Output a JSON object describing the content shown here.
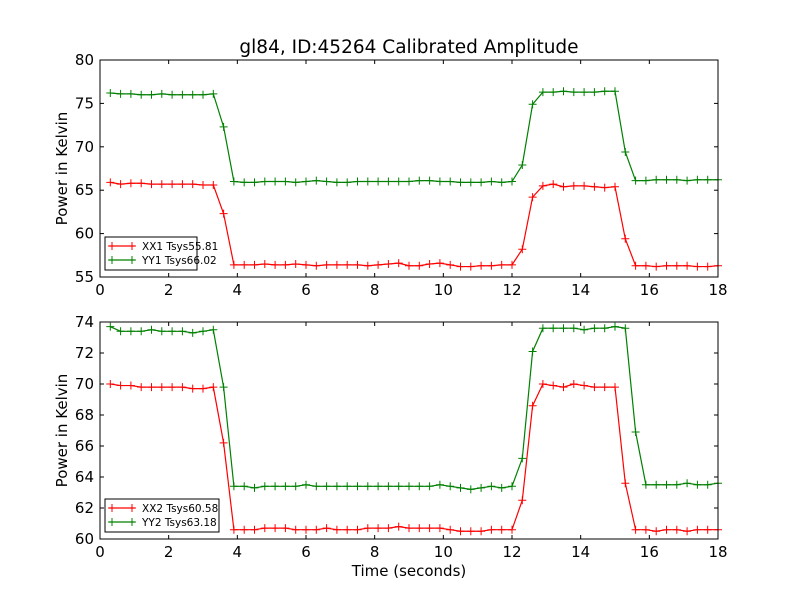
{
  "chart_data": [
    {
      "type": "line",
      "title": "gl84, ID:45264 Calibrated Amplitude",
      "xlabel": "",
      "ylabel": "Power in Kelvin",
      "xlim": [
        0,
        18
      ],
      "ylim": [
        55,
        80
      ],
      "xticks": [
        0,
        2,
        4,
        6,
        8,
        10,
        12,
        14,
        16,
        18
      ],
      "yticks": [
        55,
        60,
        65,
        70,
        75,
        80
      ],
      "grid": false,
      "legend_position": "lower-left",
      "x": [
        0.3,
        0.6,
        0.9,
        1.2,
        1.5,
        1.8,
        2.1,
        2.4,
        2.7,
        3.0,
        3.3,
        3.6,
        3.9,
        4.2,
        4.5,
        4.8,
        5.1,
        5.4,
        5.7,
        6.0,
        6.3,
        6.6,
        6.9,
        7.2,
        7.5,
        7.8,
        8.1,
        8.4,
        8.7,
        9.0,
        9.3,
        9.6,
        9.9,
        10.2,
        10.5,
        10.8,
        11.1,
        11.4,
        11.7,
        12.0,
        12.3,
        12.6,
        12.9,
        13.2,
        13.5,
        13.8,
        14.1,
        14.4,
        14.7,
        15.0,
        15.3,
        15.6,
        15.9,
        16.2,
        16.5,
        16.8,
        17.1,
        17.4,
        17.7,
        18.0
      ],
      "series": [
        {
          "name": "XX1 Tsys55.81",
          "color": "#ff0000",
          "values": [
            65.9,
            65.7,
            65.8,
            65.8,
            65.7,
            65.7,
            65.7,
            65.7,
            65.7,
            65.6,
            65.6,
            62.3,
            56.4,
            56.4,
            56.4,
            56.5,
            56.4,
            56.4,
            56.5,
            56.4,
            56.3,
            56.4,
            56.4,
            56.4,
            56.4,
            56.3,
            56.4,
            56.5,
            56.6,
            56.3,
            56.3,
            56.5,
            56.6,
            56.4,
            56.2,
            56.2,
            56.3,
            56.3,
            56.4,
            56.4,
            58.2,
            64.2,
            65.5,
            65.7,
            65.4,
            65.5,
            65.5,
            65.4,
            65.3,
            65.4,
            59.4,
            56.3,
            56.3,
            56.2,
            56.3,
            56.3,
            56.3,
            56.2,
            56.2,
            56.3
          ]
        },
        {
          "name": "YY1 Tsys66.02",
          "color": "#008000",
          "values": [
            76.2,
            76.1,
            76.1,
            76.0,
            76.0,
            76.1,
            76.0,
            76.0,
            76.0,
            76.0,
            76.1,
            72.3,
            66.0,
            65.9,
            65.9,
            66.0,
            66.0,
            66.0,
            65.9,
            66.0,
            66.1,
            66.0,
            65.9,
            65.9,
            66.0,
            66.0,
            66.0,
            66.0,
            66.0,
            66.0,
            66.1,
            66.1,
            66.0,
            66.0,
            65.9,
            65.9,
            65.9,
            66.0,
            65.9,
            66.0,
            67.9,
            74.9,
            76.3,
            76.3,
            76.4,
            76.3,
            76.3,
            76.3,
            76.4,
            76.4,
            69.4,
            66.1,
            66.1,
            66.2,
            66.2,
            66.2,
            66.1,
            66.2,
            66.2,
            66.2
          ]
        }
      ]
    },
    {
      "type": "line",
      "title": "",
      "xlabel": "Time (seconds)",
      "ylabel": "Power in Kelvin",
      "xlim": [
        0,
        18
      ],
      "ylim": [
        60,
        74
      ],
      "xticks": [
        0,
        2,
        4,
        6,
        8,
        10,
        12,
        14,
        16,
        18
      ],
      "yticks": [
        60,
        62,
        64,
        66,
        68,
        70,
        72,
        74
      ],
      "grid": false,
      "legend_position": "lower-left",
      "x": [
        0.3,
        0.6,
        0.9,
        1.2,
        1.5,
        1.8,
        2.1,
        2.4,
        2.7,
        3.0,
        3.3,
        3.6,
        3.9,
        4.2,
        4.5,
        4.8,
        5.1,
        5.4,
        5.7,
        6.0,
        6.3,
        6.6,
        6.9,
        7.2,
        7.5,
        7.8,
        8.1,
        8.4,
        8.7,
        9.0,
        9.3,
        9.6,
        9.9,
        10.2,
        10.5,
        10.8,
        11.1,
        11.4,
        11.7,
        12.0,
        12.3,
        12.6,
        12.9,
        13.2,
        13.5,
        13.8,
        14.1,
        14.4,
        14.7,
        15.0,
        15.3,
        15.6,
        15.9,
        16.2,
        16.5,
        16.8,
        17.1,
        17.4,
        17.7,
        18.0
      ],
      "series": [
        {
          "name": "XX2 Tsys60.58",
          "color": "#ff0000",
          "values": [
            70.0,
            69.9,
            69.9,
            69.8,
            69.8,
            69.8,
            69.8,
            69.8,
            69.7,
            69.7,
            69.8,
            66.2,
            60.6,
            60.6,
            60.6,
            60.7,
            60.7,
            60.7,
            60.6,
            60.6,
            60.6,
            60.7,
            60.6,
            60.6,
            60.6,
            60.7,
            60.7,
            60.7,
            60.8,
            60.7,
            60.7,
            60.7,
            60.7,
            60.6,
            60.5,
            60.5,
            60.5,
            60.6,
            60.6,
            60.6,
            62.5,
            68.6,
            70.0,
            69.9,
            69.8,
            70.0,
            69.9,
            69.8,
            69.8,
            69.8,
            63.6,
            60.6,
            60.6,
            60.5,
            60.6,
            60.6,
            60.5,
            60.6,
            60.6,
            60.6
          ]
        },
        {
          "name": "YY2 Tsys63.18",
          "color": "#008000",
          "values": [
            73.7,
            73.4,
            73.4,
            73.4,
            73.5,
            73.4,
            73.4,
            73.4,
            73.3,
            73.4,
            73.5,
            69.8,
            63.4,
            63.4,
            63.3,
            63.4,
            63.4,
            63.4,
            63.4,
            63.5,
            63.4,
            63.4,
            63.4,
            63.4,
            63.4,
            63.4,
            63.4,
            63.4,
            63.4,
            63.4,
            63.4,
            63.4,
            63.5,
            63.4,
            63.3,
            63.2,
            63.3,
            63.4,
            63.3,
            63.4,
            65.2,
            72.1,
            73.6,
            73.6,
            73.6,
            73.6,
            73.5,
            73.6,
            73.6,
            73.7,
            73.6,
            66.9,
            63.5,
            63.5,
            63.5,
            63.5,
            63.6,
            63.5,
            63.5,
            63.6
          ]
        }
      ]
    }
  ]
}
